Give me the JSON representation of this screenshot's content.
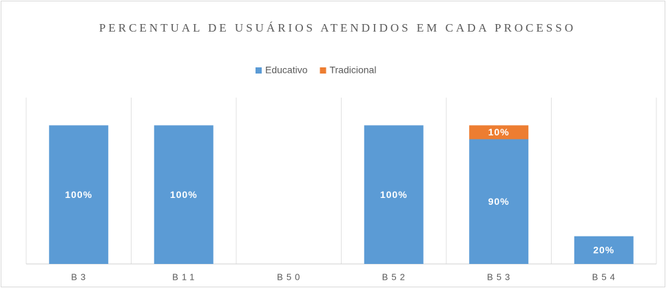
{
  "chart_data": {
    "type": "stacked_bar",
    "title": "PERCENTUAL DE USUÁRIOS ATENDIDOS EM CADA PROCESSO",
    "categories": [
      "B3",
      "B11",
      "B50",
      "B52",
      "B53",
      "B54"
    ],
    "series": [
      {
        "name": "Educativo",
        "color": "#5b9bd5",
        "values": [
          100,
          100,
          null,
          100,
          90,
          20
        ],
        "value_labels": [
          "100%",
          "100%",
          null,
          "100%",
          "90%",
          "20%"
        ]
      },
      {
        "name": "Tradicional",
        "color": "#ed7d31",
        "values": [
          null,
          null,
          null,
          null,
          10,
          null
        ],
        "value_labels": [
          null,
          null,
          null,
          null,
          "10%",
          null
        ]
      }
    ],
    "ylim": [
      0,
      120
    ],
    "legend": "top"
  }
}
